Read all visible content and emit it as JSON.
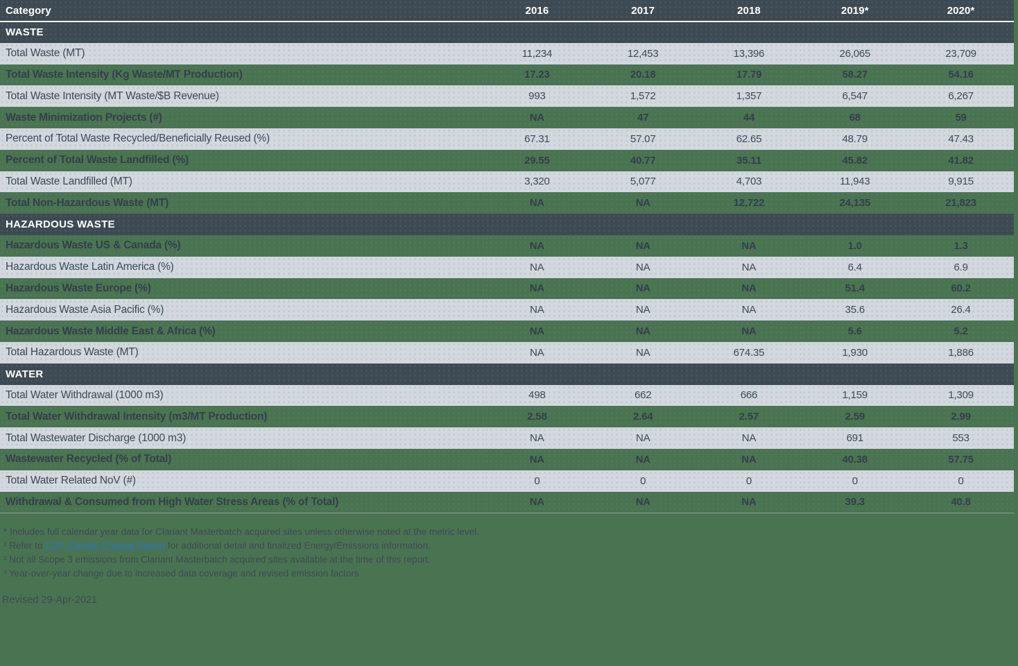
{
  "table": {
    "header": {
      "category_label": "Category",
      "years": [
        "2016",
        "2017",
        "2018",
        "2019*",
        "2020*"
      ]
    },
    "sections": [
      {
        "title": "WASTE",
        "rows": [
          {
            "label": "Total Waste (MT)",
            "values": [
              "11,234",
              "12,453",
              "13,396",
              "26,065",
              "23,709"
            ],
            "variant": "light"
          },
          {
            "label": "Total Waste Intensity (Kg Waste/MT Production)",
            "values": [
              "17.23",
              "20.18",
              "17.79",
              "58.27",
              "54.16"
            ],
            "variant": "green"
          },
          {
            "label": "Total Waste Intensity (MT Waste/$B Revenue)",
            "values": [
              "993",
              "1,572",
              "1,357",
              "6,547",
              "6,267"
            ],
            "variant": "light"
          },
          {
            "label": "Waste Minimization Projects (#)",
            "values": [
              "NA",
              "47",
              "44",
              "68",
              "59"
            ],
            "variant": "green"
          },
          {
            "label": "Percent of Total Waste Recycled/Beneficially Reused (%)",
            "values": [
              "67.31",
              "57.07",
              "62.65",
              "48.79",
              "47.43"
            ],
            "variant": "light"
          },
          {
            "label": "Percent of Total Waste Landfilled (%)",
            "values": [
              "29.55",
              "40.77",
              "35.11",
              "45.82",
              "41.82"
            ],
            "variant": "green"
          },
          {
            "label": "Total Waste Landfilled (MT)",
            "values": [
              "3,320",
              "5,077",
              "4,703",
              "11,943",
              "9,915"
            ],
            "variant": "light"
          },
          {
            "label": "Total Non-Hazardous Waste (MT)",
            "values": [
              "NA",
              "NA",
              "12,722",
              "24,135",
              "21,823"
            ],
            "variant": "green"
          }
        ]
      },
      {
        "title": "HAZARDOUS WASTE",
        "rows": [
          {
            "label": "Hazardous Waste US & Canada (%)",
            "values": [
              "NA",
              "NA",
              "NA",
              "1.0",
              "1.3"
            ],
            "variant": "green"
          },
          {
            "label": "Hazardous Waste Latin America (%)",
            "values": [
              "NA",
              "NA",
              "NA",
              "6.4",
              "6.9"
            ],
            "variant": "light"
          },
          {
            "label": "Hazardous Waste Europe (%)",
            "values": [
              "NA",
              "NA",
              "NA",
              "51.4",
              "60.2"
            ],
            "variant": "green"
          },
          {
            "label": "Hazardous Waste Asia Pacific (%)",
            "values": [
              "NA",
              "NA",
              "NA",
              "35.6",
              "26.4"
            ],
            "variant": "light"
          },
          {
            "label": "Hazardous Waste Middle East & Africa (%)",
            "values": [
              "NA",
              "NA",
              "NA",
              "5.6",
              "5.2"
            ],
            "variant": "green"
          },
          {
            "label": "Total Hazardous Waste (MT)",
            "values": [
              "NA",
              "NA",
              "674.35",
              "1,930",
              "1,886"
            ],
            "variant": "light"
          }
        ]
      },
      {
        "title": "WATER",
        "rows": [
          {
            "label": "Total Water Withdrawal (1000 m3)",
            "values": [
              "498",
              "662",
              "666",
              "1,159",
              "1,309"
            ],
            "variant": "light"
          },
          {
            "label": "Total Water Withdrawal Intensity (m3/MT Production)",
            "values": [
              "2.58",
              "2.64",
              "2.57",
              "2.59",
              "2.99"
            ],
            "variant": "green"
          },
          {
            "label": "Total Wastewater Discharge (1000 m3)",
            "values": [
              "NA",
              "NA",
              "NA",
              "691",
              "553"
            ],
            "variant": "light"
          },
          {
            "label": "Wastewater Recycled (% of Total)",
            "values": [
              "NA",
              "NA",
              "NA",
              "40.38",
              "57.75"
            ],
            "variant": "green"
          },
          {
            "label": "Total Water Related NoV (#)",
            "values": [
              "0",
              "0",
              "0",
              "0",
              "0"
            ],
            "variant": "light"
          },
          {
            "label": "Withdrawal & Consumed from High Water Stress Areas (% of Total)",
            "values": [
              "NA",
              "NA",
              "NA",
              "39.3",
              "40.8"
            ],
            "variant": "green"
          }
        ]
      }
    ]
  },
  "footnotes": {
    "line1": "* Includes full calendar year data for Clariant Masterbatch acquired sites unless otherwise noted at the metric level.",
    "line2_prefix": "¹ Refer to ",
    "line2_link": "CDP Climate Change Report",
    "line2_suffix": " for additional detail and finalized Energy/Emissions information.",
    "line3": "² Not all Scope 3 emissions from Clariant Masterbatch acquired sites available at the time of this report.",
    "line4": "³ Year-over-year change due to increased data coverage and revised emission factors.",
    "revised": "Revised 29-Apr-2021"
  },
  "colors": {
    "page_background": "#4A7352",
    "header_dark": "#3E4A53",
    "row_light": "#D3D8DF",
    "text_dark": "#3C4A54",
    "header_text": "#FFFFFF",
    "link_blue": "#2E75B6"
  }
}
